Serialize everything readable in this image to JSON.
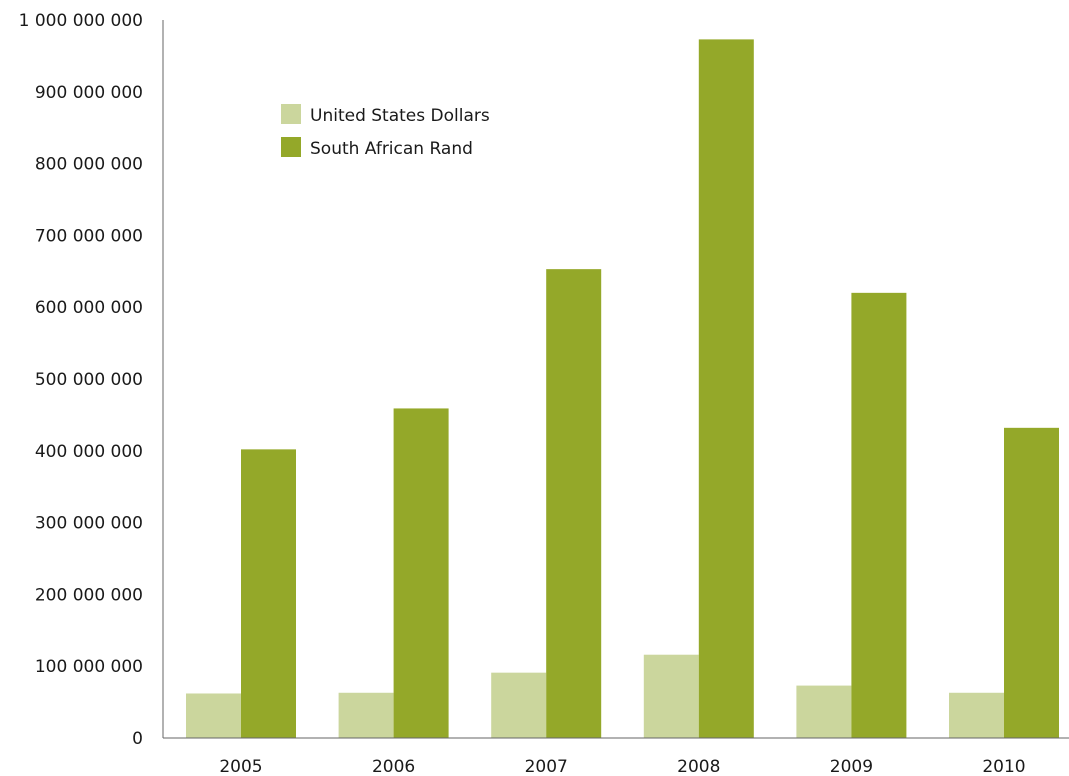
{
  "chart_data": {
    "type": "bar",
    "categories": [
      "2005",
      "2006",
      "2007",
      "2008",
      "2009",
      "2010"
    ],
    "series": [
      {
        "name": "United States Dollars",
        "color": "#cbd69d",
        "values": [
          62000000,
          63000000,
          91000000,
          116000000,
          73000000,
          63000000
        ]
      },
      {
        "name": "South African Rand",
        "color": "#94a829",
        "values": [
          402000000,
          459000000,
          653000000,
          973000000,
          620000000,
          432000000
        ]
      }
    ],
    "y_ticks": [
      "0",
      "100 000 000",
      "200 000 000",
      "300 000 000",
      "400 000 000",
      "500 000 000",
      "600 000 000",
      "700 000 000",
      "800 000 000",
      "900 000 000",
      "1 000 000 000"
    ],
    "ylim": [
      0,
      1000000000
    ],
    "grid": false,
    "legend_position": "top-left"
  }
}
